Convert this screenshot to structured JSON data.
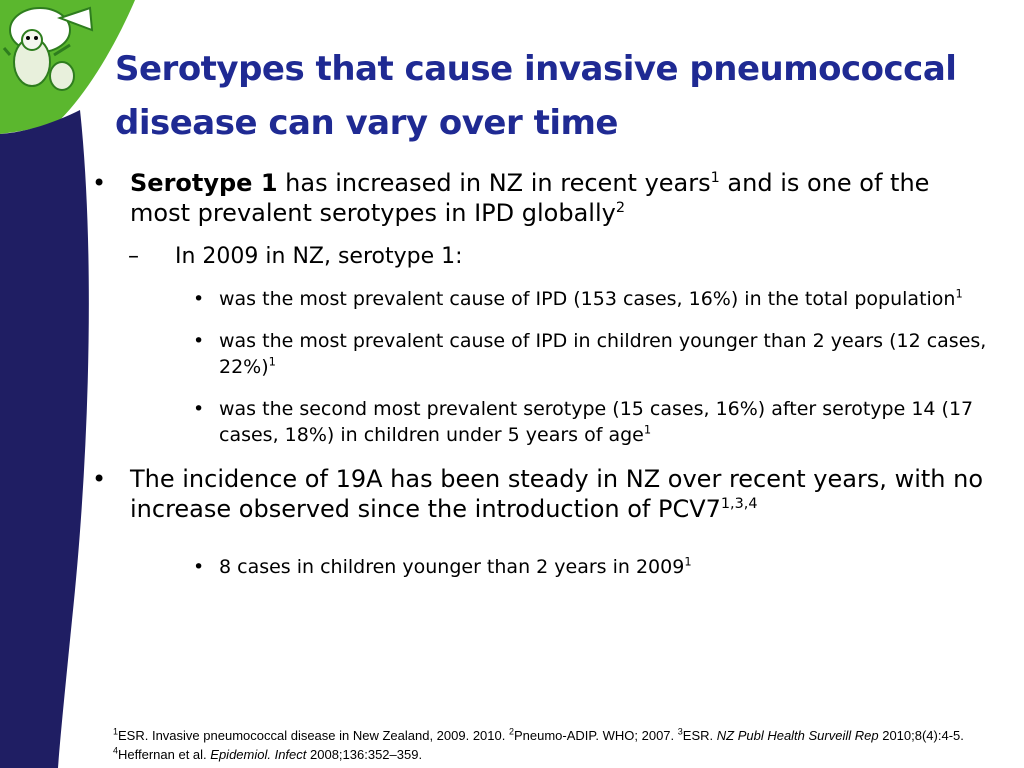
{
  "slide": {
    "title": "Serotypes that cause invasive pneumococcal disease can vary over time",
    "colors": {
      "title": "#1f2a93",
      "band_navy": "#1f1e63",
      "band_green": "#5bb72e"
    }
  },
  "bullets": {
    "b1": {
      "bold": "Serotype 1",
      "text": " has increased in NZ in recent years",
      "sup1": "1",
      "text2": " and is one of the most prevalent serotypes in IPD globally",
      "sup2": "2"
    },
    "b1_sub": {
      "text": "In 2009 in NZ, serotype 1:"
    },
    "b1_items": [
      {
        "text": "was the most prevalent cause of IPD (153 cases, 16%) in the total population",
        "sup": "1"
      },
      {
        "text": "was the most prevalent cause of IPD in children younger than 2 years (12 cases, 22%)",
        "sup": "1"
      },
      {
        "text": "was the second most prevalent serotype (15 cases, 16%) after serotype 14 (17 cases, 18%) in children under 5 years of age",
        "sup": "1"
      }
    ],
    "b2": {
      "text": "The incidence of 19A has been steady in NZ over recent years, with no increase observed since the introduction of PCV7",
      "sup": "1,3,4"
    },
    "b2_items": [
      {
        "text": "8 cases in children younger than 2 years in 2009",
        "sup": "1"
      }
    ]
  },
  "footnote": {
    "s1": "1",
    "t1": "ESR. Invasive pneumococcal disease in New Zealand, 2009. 2010. ",
    "s2": "2",
    "t2": "Pneumo-ADIP. WHO; 2007. ",
    "s3": "3",
    "t3": "ESR. ",
    "i3": "NZ Publ Health Surveill Rep",
    "t3b": " 2010;8(4):4-5. ",
    "s4": "4",
    "t4": "Heffernan et al. ",
    "i4": "Epidemiol. Infect",
    "t4b": " 2008;136:352–359."
  }
}
